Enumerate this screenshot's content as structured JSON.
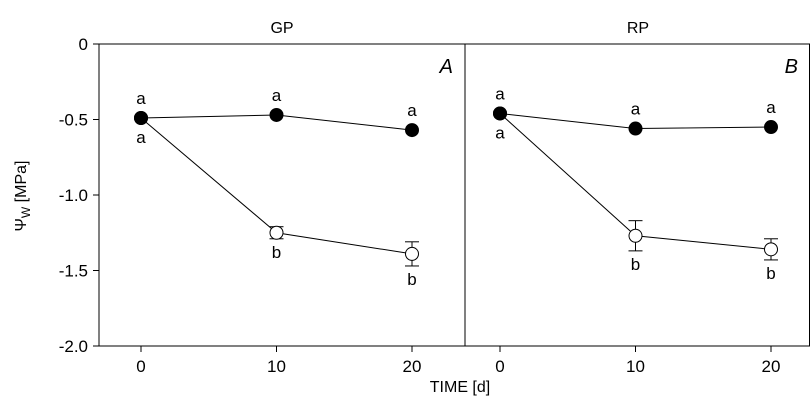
{
  "chart_data": {
    "type": "scatter",
    "xlabel": "TIME [d]",
    "ylabel": "Ψ",
    "ylabel_sub": "W",
    "ylabel_unit": " [MPa]",
    "ylim": [
      -2.0,
      0
    ],
    "yticks": [
      0,
      -0.5,
      -1.0,
      -1.5,
      -2.0
    ],
    "ytick_labels": [
      "0",
      "-0.5",
      "-1.0",
      "-1.5",
      "-2.0"
    ],
    "xticks": [
      0,
      10,
      20
    ],
    "xtick_labels": [
      "0",
      "10",
      "20"
    ],
    "xlim": [
      -3,
      23
    ],
    "grid": false,
    "panels": [
      {
        "title": "GP",
        "letter": "A",
        "series": [
          {
            "marker": "filled",
            "color": "#000000",
            "x": [
              0,
              10,
              20
            ],
            "values": [
              -0.49,
              -0.47,
              -0.57
            ],
            "errors": [
              0,
              0,
              0
            ],
            "sig_above": [
              "a",
              "a",
              "a"
            ]
          },
          {
            "marker": "open",
            "color": "#000000",
            "x": [
              0,
              10,
              20
            ],
            "values": [
              -0.49,
              -1.25,
              -1.39
            ],
            "errors": [
              0,
              0.04,
              0.08
            ],
            "sig_below": [
              "a",
              "b",
              "b"
            ]
          }
        ]
      },
      {
        "title": "RP",
        "letter": "B",
        "series": [
          {
            "marker": "filled",
            "color": "#000000",
            "x": [
              0,
              10,
              20
            ],
            "values": [
              -0.46,
              -0.56,
              -0.55
            ],
            "errors": [
              0,
              0,
              0
            ],
            "sig_above": [
              "a",
              "a",
              "a"
            ]
          },
          {
            "marker": "open",
            "color": "#000000",
            "x": [
              0,
              10,
              20
            ],
            "values": [
              -0.46,
              -1.27,
              -1.36
            ],
            "errors": [
              0,
              0.1,
              0.07
            ],
            "sig_below": [
              "a",
              "b",
              "b"
            ]
          }
        ]
      }
    ]
  }
}
